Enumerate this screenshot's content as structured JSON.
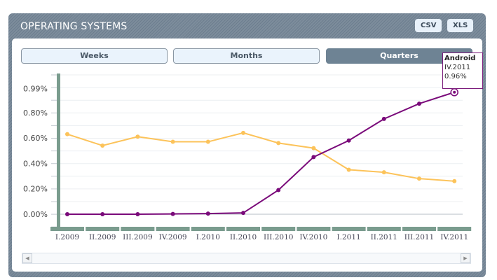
{
  "header": {
    "title": "OPERATING SYSTEMS",
    "csv": "CSV",
    "xls": "XLS"
  },
  "tabs": [
    {
      "label": "Weeks"
    },
    {
      "label": "Months"
    },
    {
      "label": "Quarters",
      "active": true
    }
  ],
  "tooltip": {
    "series": "Android",
    "period": "IV.2011",
    "value": "0.96%"
  },
  "chart_data": {
    "type": "line",
    "categories": [
      "I.2009",
      "II.2009",
      "III.2009",
      "IV.2009",
      "I.2010",
      "II.2010",
      "III.2010",
      "IV.2010",
      "I.2011",
      "II.2011",
      "III.2011",
      "IV.2011"
    ],
    "yticks": [
      "0.99%",
      "0.80%",
      "0.60%",
      "0.40%",
      "0.20%",
      "0.00%"
    ],
    "ylim": [
      -0.1,
      1.1
    ],
    "series": [
      {
        "name": "",
        "color": "#fcc35a",
        "values": [
          0.63,
          0.54,
          0.61,
          0.57,
          0.57,
          0.64,
          0.56,
          0.52,
          0.35,
          0.33,
          0.28,
          0.26
        ]
      },
      {
        "name": "Android",
        "color": "#7a0a7a",
        "values": [
          0.0,
          0.0,
          0.0,
          0.002,
          0.005,
          0.01,
          0.19,
          0.45,
          0.58,
          0.75,
          0.87,
          0.96
        ]
      }
    ]
  }
}
